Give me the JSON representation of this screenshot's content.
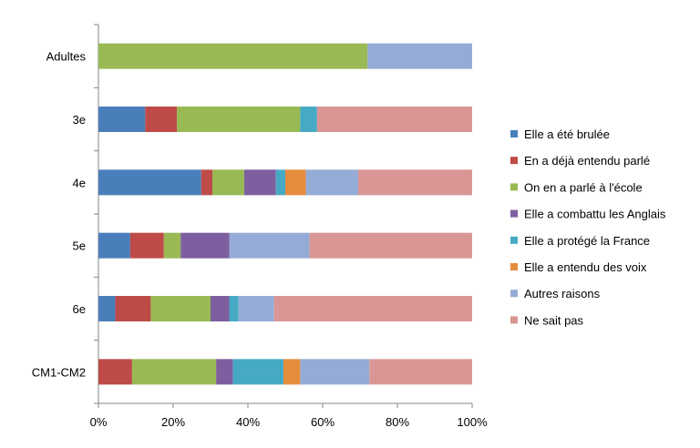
{
  "chart_data": {
    "type": "bar",
    "orientation": "horizontal",
    "stacked": true,
    "percent": true,
    "categories": [
      "Adultes",
      "3e",
      "4e",
      "5e",
      "6e",
      "CM1-CM2"
    ],
    "xlim": [
      0,
      100
    ],
    "x_ticks": [
      "0%",
      "20%",
      "40%",
      "60%",
      "80%",
      "100%"
    ],
    "grid": false,
    "legend_position": "right",
    "series": [
      {
        "name": "Elle a été brulée",
        "color": "#4a7ebb",
        "values": [
          0,
          12.5,
          27.5,
          8.5,
          4.5,
          0
        ]
      },
      {
        "name": "En a déjà entendu parlé",
        "color": "#be4b48",
        "values": [
          0,
          8.5,
          3,
          9,
          9.5,
          9
        ]
      },
      {
        "name": "On en a  parlé à l'école",
        "color": "#98b954",
        "values": [
          72,
          33,
          8.5,
          4.5,
          16,
          22.5
        ]
      },
      {
        "name": "Elle a  combattu les Anglais",
        "color": "#7d5fa0",
        "values": [
          0,
          0,
          8.5,
          13,
          5,
          4.5
        ]
      },
      {
        "name": "Elle a  protégé la France",
        "color": "#46aac5",
        "values": [
          0,
          4.5,
          2.5,
          0,
          2.5,
          13.5
        ]
      },
      {
        "name": "Elle a entendu des voix",
        "color": "#e68c3d",
        "values": [
          0,
          0,
          5.5,
          0,
          0,
          4.5
        ]
      },
      {
        "name": "Autres raisons",
        "color": "#94acd5",
        "values": [
          28,
          0,
          14,
          21.5,
          9.5,
          18.5
        ]
      },
      {
        "name": "Ne sait pas",
        "color": "#d99694",
        "values": [
          0,
          41.5,
          30.5,
          43.5,
          53,
          27.5
        ]
      }
    ]
  }
}
